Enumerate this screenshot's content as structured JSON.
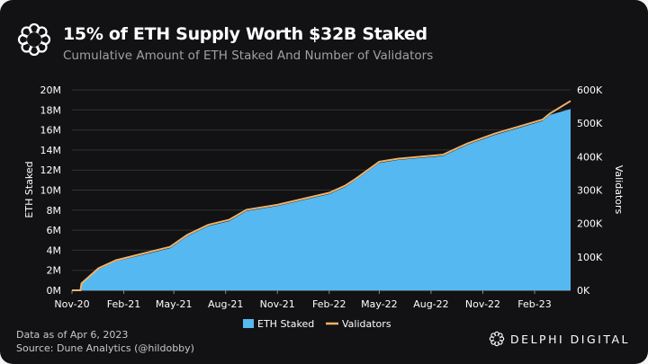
{
  "header": {
    "title": "15% of ETH Supply Worth $32B Staked",
    "subtitle": "Cumulative Amount of ETH Staked And Number of Validators"
  },
  "footer": {
    "data_as_of": "Data as of Apr 6, 2023",
    "source": "Source: Dune Analytics (@hildobby)",
    "brand": "DELPHI DIGITAL"
  },
  "chart_data": {
    "type": "area",
    "title": "15% of ETH Supply Worth $32B Staked",
    "subtitle": "Cumulative Amount of ETH Staked And Number of Validators",
    "ylabel": "ETH Staked",
    "y2label": "Validators",
    "ylim": [
      0,
      20000000
    ],
    "y2lim": [
      0,
      600000
    ],
    "yticks": [
      "0M",
      "2M",
      "4M",
      "6M",
      "8M",
      "10M",
      "12M",
      "14M",
      "16M",
      "18M",
      "20M"
    ],
    "y2ticks": [
      "0K",
      "100K",
      "200K",
      "300K",
      "400K",
      "500K",
      "600K"
    ],
    "xticks": [
      "Nov-20",
      "Feb-21",
      "May-21",
      "Aug-21",
      "Nov-21",
      "Feb-22",
      "May-22",
      "Aug-22",
      "Nov-22",
      "Feb-23"
    ],
    "grid": true,
    "legend": "bottom",
    "colors": {
      "eth_staked": "#56b8f1",
      "validators": "#f0b36a"
    },
    "x": [
      "2020-11-01",
      "2020-11-16",
      "2020-11-18",
      "2020-12-18",
      "2021-01-18",
      "2021-03-12",
      "2021-04-24",
      "2021-05-25",
      "2021-07-01",
      "2021-08-07",
      "2021-09-07",
      "2021-11-01",
      "2022-02-01",
      "2022-03-01",
      "2022-03-20",
      "2022-05-01",
      "2022-06-03",
      "2022-08-22",
      "2022-10-04",
      "2022-11-22",
      "2023-02-15",
      "2023-02-28",
      "2023-04-06"
    ],
    "series": [
      {
        "name": "ETH Staked",
        "type": "area",
        "axis": "left",
        "values": [
          0,
          0,
          600000,
          2100000,
          2900000,
          3600000,
          4200000,
          5400000,
          6400000,
          6900000,
          7900000,
          8400000,
          9600000,
          10300000,
          11000000,
          12700000,
          13000000,
          13400000,
          14500000,
          15500000,
          16900000,
          17500000,
          18100000
        ]
      },
      {
        "name": "Validators",
        "type": "line",
        "axis": "right",
        "values": [
          0,
          0,
          21000,
          66000,
          90000,
          112000,
          130000,
          166000,
          196000,
          211000,
          241000,
          256000,
          292000,
          313000,
          334000,
          385000,
          394000,
          406000,
          439000,
          469000,
          511000,
          529000,
          567000
        ]
      }
    ]
  }
}
